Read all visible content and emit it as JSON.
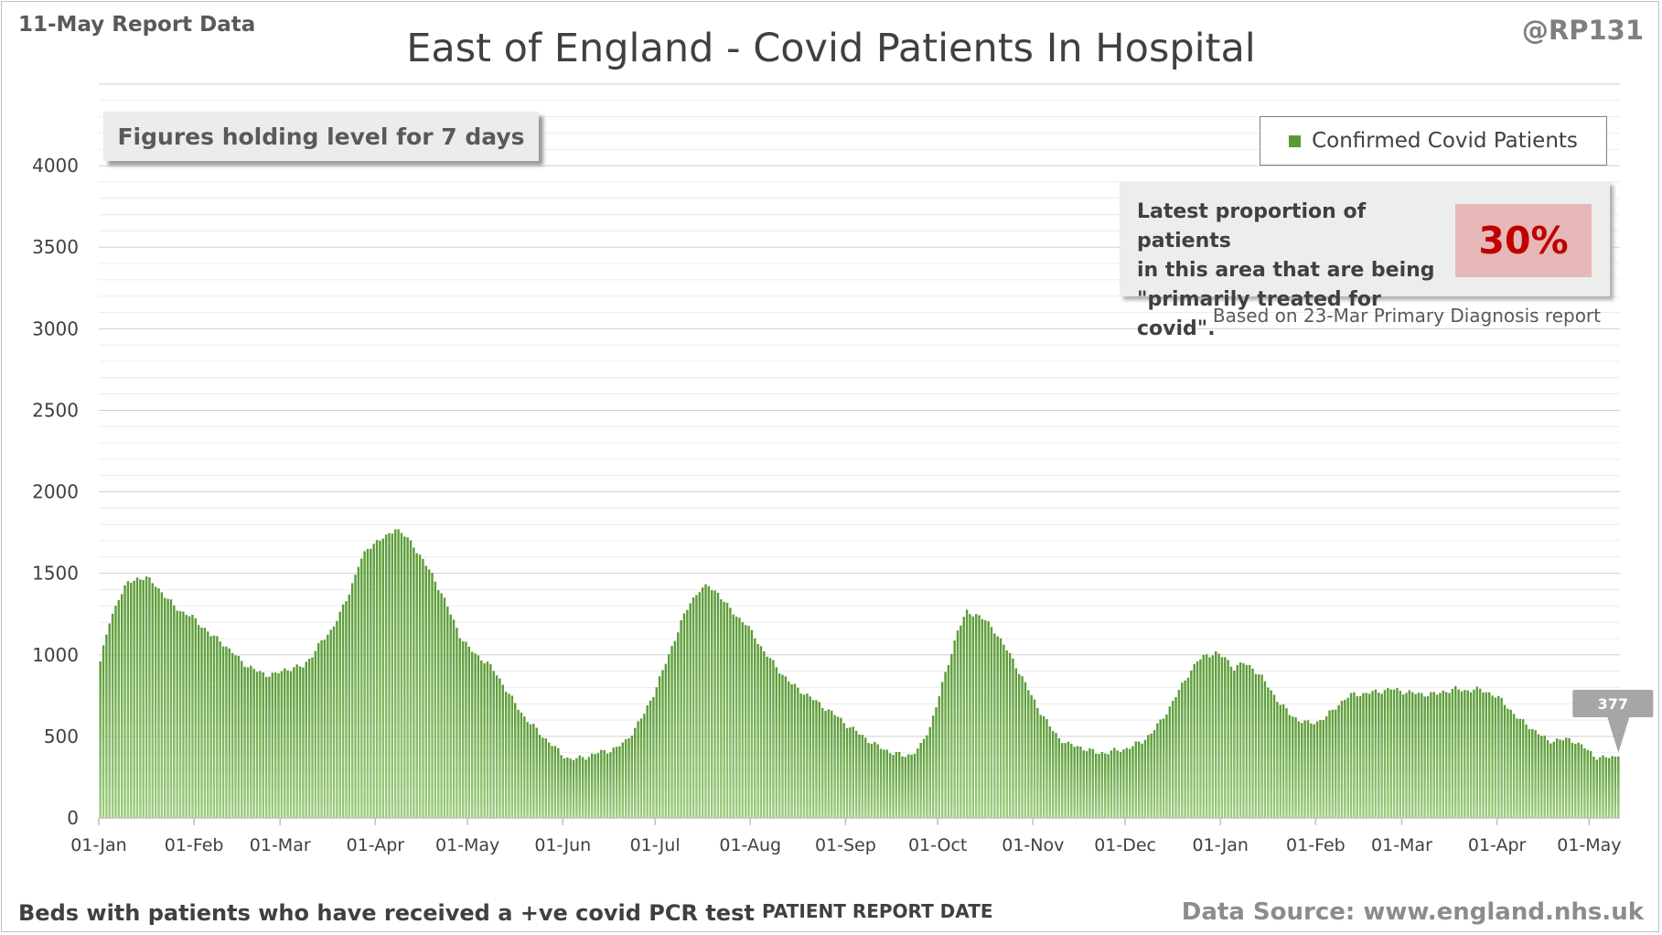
{
  "header": {
    "report_label": "11-May Report Data",
    "handle": "@RP131",
    "title": "East of England - Covid Patients In Hospital"
  },
  "note": "Figures holding level for 7 days",
  "legend_label": "Confirmed Covid Patients",
  "info": {
    "text_line1": "Latest proportion of patients",
    "text_line2": "in this area that are being",
    "text_line3": "\"primarily treated for covid\".",
    "percentage": "30%",
    "based_on": "Based on 23-Mar Primary Diagnosis report"
  },
  "footer": {
    "left": "Beds with patients who have received a +ve covid PCR test",
    "xlabel": "PATIENT REPORT DATE",
    "source": "Data Source: www.england.nhs.uk"
  },
  "colors": {
    "bar": "#5a9a36",
    "bar_light": "#9ccc7e",
    "grid": "#d9d9d9",
    "callout": "#a6a6a6"
  },
  "chart_data": {
    "type": "bar",
    "x_type": "date",
    "x_start": "2021-01-01",
    "x_end": "2022-05-10",
    "y_ticks": [
      0,
      500,
      1000,
      1500,
      2000,
      2500,
      3000,
      3500,
      4000
    ],
    "ylim": [
      0,
      4500
    ],
    "x_tick_labels": [
      "01-Jan",
      "01-Feb",
      "01-Mar",
      "01-Apr",
      "01-May",
      "01-Jun",
      "01-Jul",
      "01-Aug",
      "01-Sep",
      "01-Oct",
      "01-Nov",
      "01-Dec",
      "01-Jan",
      "01-Feb",
      "01-Mar",
      "01-Apr",
      "01-May"
    ],
    "x_tick_dates": [
      "2021-01-01",
      "2021-02-01",
      "2021-03-01",
      "2021-04-01",
      "2021-05-01",
      "2021-06-01",
      "2021-07-01",
      "2021-08-01",
      "2021-09-01",
      "2021-10-01",
      "2021-11-01",
      "2021-12-01",
      "2022-01-01",
      "2022-02-01",
      "2022-03-01",
      "2022-04-01",
      "2022-05-01"
    ],
    "series": [
      {
        "name": "Confirmed Covid Patients",
        "points": [
          [
            "2021-01-01",
            960
          ],
          [
            "2021-01-04",
            1200
          ],
          [
            "2021-01-07",
            1350
          ],
          [
            "2021-01-10",
            1440
          ],
          [
            "2021-01-13",
            1470
          ],
          [
            "2021-01-16",
            1470
          ],
          [
            "2021-01-19",
            1430
          ],
          [
            "2021-01-22",
            1360
          ],
          [
            "2021-01-25",
            1300
          ],
          [
            "2021-01-28",
            1260
          ],
          [
            "2021-01-31",
            1230
          ],
          [
            "2021-02-03",
            1180
          ],
          [
            "2021-02-06",
            1120
          ],
          [
            "2021-02-09",
            1090
          ],
          [
            "2021-02-12",
            1030
          ],
          [
            "2021-02-15",
            980
          ],
          [
            "2021-02-18",
            930
          ],
          [
            "2021-02-21",
            900
          ],
          [
            "2021-02-24",
            880
          ],
          [
            "2021-02-27",
            880
          ],
          [
            "2021-03-02",
            910
          ],
          [
            "2021-03-05",
            920
          ],
          [
            "2021-03-08",
            930
          ],
          [
            "2021-03-11",
            1000
          ],
          [
            "2021-03-14",
            1080
          ],
          [
            "2021-03-17",
            1150
          ],
          [
            "2021-03-20",
            1250
          ],
          [
            "2021-03-23",
            1380
          ],
          [
            "2021-03-26",
            1550
          ],
          [
            "2021-03-29",
            1650
          ],
          [
            "2021-04-01",
            1700
          ],
          [
            "2021-04-04",
            1720
          ],
          [
            "2021-04-07",
            1780
          ],
          [
            "2021-04-10",
            1730
          ],
          [
            "2021-04-13",
            1670
          ],
          [
            "2021-04-16",
            1580
          ],
          [
            "2021-04-19",
            1490
          ],
          [
            "2021-04-22",
            1380
          ],
          [
            "2021-04-25",
            1250
          ],
          [
            "2021-04-28",
            1120
          ],
          [
            "2021-05-01",
            1040
          ],
          [
            "2021-05-04",
            990
          ],
          [
            "2021-05-07",
            950
          ],
          [
            "2021-05-10",
            880
          ],
          [
            "2021-05-13",
            790
          ],
          [
            "2021-05-16",
            700
          ],
          [
            "2021-05-19",
            620
          ],
          [
            "2021-05-22",
            560
          ],
          [
            "2021-05-25",
            500
          ],
          [
            "2021-05-28",
            450
          ],
          [
            "2021-05-31",
            390
          ],
          [
            "2021-06-03",
            360
          ],
          [
            "2021-06-06",
            365
          ],
          [
            "2021-06-09",
            380
          ],
          [
            "2021-06-12",
            400
          ],
          [
            "2021-06-15",
            410
          ],
          [
            "2021-06-18",
            430
          ],
          [
            "2021-06-21",
            470
          ],
          [
            "2021-06-24",
            550
          ],
          [
            "2021-06-27",
            640
          ],
          [
            "2021-06-30",
            760
          ],
          [
            "2021-07-03",
            900
          ],
          [
            "2021-07-06",
            1050
          ],
          [
            "2021-07-09",
            1200
          ],
          [
            "2021-07-12",
            1320
          ],
          [
            "2021-07-15",
            1400
          ],
          [
            "2021-07-18",
            1420
          ],
          [
            "2021-07-21",
            1380
          ],
          [
            "2021-07-24",
            1300
          ],
          [
            "2021-07-27",
            1240
          ],
          [
            "2021-07-30",
            1190
          ],
          [
            "2021-08-02",
            1110
          ],
          [
            "2021-08-05",
            1020
          ],
          [
            "2021-08-08",
            950
          ],
          [
            "2021-08-11",
            880
          ],
          [
            "2021-08-14",
            820
          ],
          [
            "2021-08-17",
            780
          ],
          [
            "2021-08-20",
            740
          ],
          [
            "2021-08-23",
            700
          ],
          [
            "2021-08-26",
            660
          ],
          [
            "2021-08-29",
            620
          ],
          [
            "2021-09-01",
            570
          ],
          [
            "2021-09-04",
            530
          ],
          [
            "2021-09-07",
            490
          ],
          [
            "2021-09-10",
            450
          ],
          [
            "2021-09-13",
            420
          ],
          [
            "2021-09-16",
            400
          ],
          [
            "2021-09-19",
            380
          ],
          [
            "2021-09-22",
            390
          ],
          [
            "2021-09-25",
            440
          ],
          [
            "2021-09-28",
            560
          ],
          [
            "2021-10-01",
            750
          ],
          [
            "2021-10-04",
            950
          ],
          [
            "2021-10-07",
            1150
          ],
          [
            "2021-10-10",
            1260
          ],
          [
            "2021-10-13",
            1250
          ],
          [
            "2021-10-16",
            1210
          ],
          [
            "2021-10-19",
            1150
          ],
          [
            "2021-10-22",
            1060
          ],
          [
            "2021-10-25",
            970
          ],
          [
            "2021-10-28",
            860
          ],
          [
            "2021-10-31",
            750
          ],
          [
            "2021-11-03",
            650
          ],
          [
            "2021-11-06",
            560
          ],
          [
            "2021-11-09",
            490
          ],
          [
            "2021-11-12",
            450
          ],
          [
            "2021-11-15",
            440
          ],
          [
            "2021-11-18",
            420
          ],
          [
            "2021-11-21",
            400
          ],
          [
            "2021-11-24",
            400
          ],
          [
            "2021-11-27",
            410
          ],
          [
            "2021-11-30",
            420
          ],
          [
            "2021-12-03",
            440
          ],
          [
            "2021-12-06",
            470
          ],
          [
            "2021-12-09",
            520
          ],
          [
            "2021-12-12",
            590
          ],
          [
            "2021-12-15",
            680
          ],
          [
            "2021-12-18",
            780
          ],
          [
            "2021-12-21",
            880
          ],
          [
            "2021-12-24",
            960
          ],
          [
            "2021-12-27",
            1000
          ],
          [
            "2021-12-30",
            1010
          ],
          [
            "2022-01-02",
            980
          ],
          [
            "2022-01-05",
            920
          ],
          [
            "2022-01-08",
            950
          ],
          [
            "2022-01-11",
            920
          ],
          [
            "2022-01-14",
            860
          ],
          [
            "2022-01-17",
            780
          ],
          [
            "2022-01-20",
            700
          ],
          [
            "2022-01-23",
            640
          ],
          [
            "2022-01-26",
            600
          ],
          [
            "2022-01-29",
            580
          ],
          [
            "2022-02-01",
            590
          ],
          [
            "2022-02-04",
            620
          ],
          [
            "2022-02-07",
            680
          ],
          [
            "2022-02-10",
            730
          ],
          [
            "2022-02-13",
            760
          ],
          [
            "2022-02-16",
            760
          ],
          [
            "2022-02-19",
            770
          ],
          [
            "2022-02-22",
            780
          ],
          [
            "2022-02-25",
            790
          ],
          [
            "2022-02-28",
            780
          ],
          [
            "2022-03-03",
            770
          ],
          [
            "2022-03-06",
            760
          ],
          [
            "2022-03-09",
            760
          ],
          [
            "2022-03-12",
            760
          ],
          [
            "2022-03-15",
            780
          ],
          [
            "2022-03-18",
            790
          ],
          [
            "2022-03-21",
            780
          ],
          [
            "2022-03-24",
            790
          ],
          [
            "2022-03-27",
            780
          ],
          [
            "2022-03-30",
            760
          ],
          [
            "2022-04-02",
            720
          ],
          [
            "2022-04-05",
            660
          ],
          [
            "2022-04-08",
            600
          ],
          [
            "2022-04-11",
            560
          ],
          [
            "2022-04-14",
            520
          ],
          [
            "2022-04-17",
            470
          ],
          [
            "2022-04-20",
            480
          ],
          [
            "2022-04-23",
            480
          ],
          [
            "2022-04-26",
            470
          ],
          [
            "2022-04-29",
            430
          ],
          [
            "2022-05-02",
            380
          ],
          [
            "2022-05-05",
            370
          ],
          [
            "2022-05-08",
            370
          ],
          [
            "2022-05-10",
            377
          ]
        ]
      }
    ],
    "last_value_label": "377"
  }
}
